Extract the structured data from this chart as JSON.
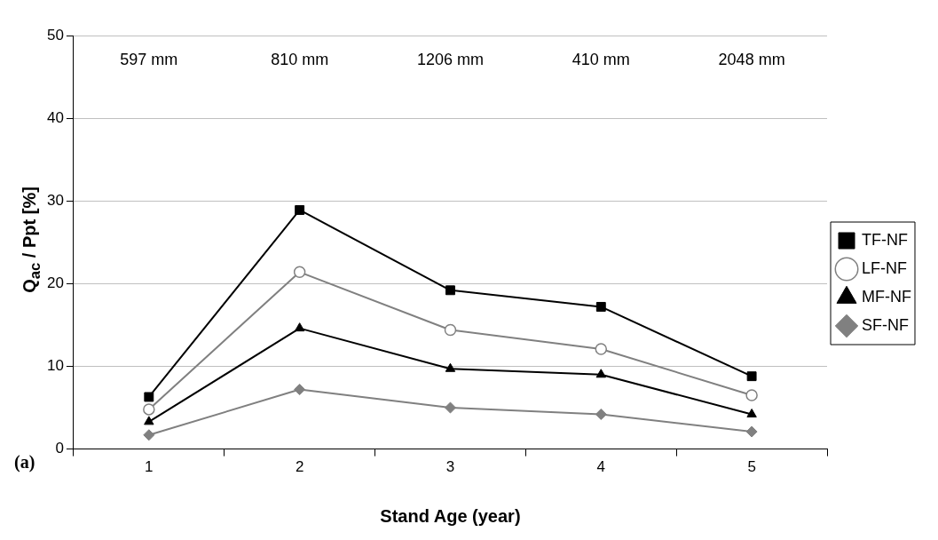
{
  "chart_data": {
    "type": "line",
    "xlabel": "Stand Age (year)",
    "ylabel": "Q$_{ac}$ / Ppt [%]",
    "categories": [
      "1",
      "2",
      "3",
      "4",
      "5"
    ],
    "series": [
      {
        "name": "TF-NF",
        "color": "#000000",
        "marker": "square",
        "values": [
          6.3,
          28.9,
          19.2,
          17.2,
          8.8
        ]
      },
      {
        "name": "LF-NF",
        "color": "#808080",
        "marker": "circle",
        "values": [
          4.8,
          21.4,
          14.4,
          12.1,
          6.5
        ]
      },
      {
        "name": "MF-NF",
        "color": "#000000",
        "marker": "triangle",
        "values": [
          3.3,
          14.6,
          9.7,
          9.0,
          4.2
        ]
      },
      {
        "name": "SF-NF",
        "color": "#808080",
        "marker": "diamond",
        "values": [
          1.7,
          7.2,
          5.0,
          4.2,
          2.1
        ]
      }
    ],
    "ylim": [
      0,
      50
    ],
    "yticks": [
      0,
      10,
      20,
      30,
      40,
      50
    ],
    "grid": "y",
    "legend": "right",
    "line_style": "solid",
    "annotations": [
      "597 mm",
      "810 mm",
      "1206 mm",
      "410 mm",
      "2048 mm",
      "(a)"
    ]
  }
}
